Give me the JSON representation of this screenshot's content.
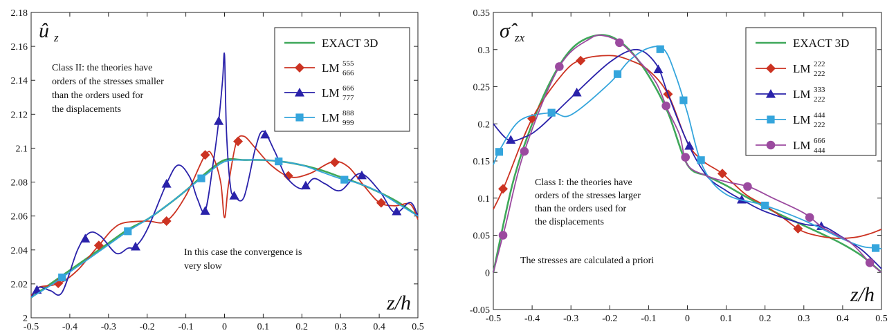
{
  "charts": [
    {
      "title_symbol": "û",
      "title_subscript": "z",
      "xlabel": "z/h",
      "notes": [
        "Class II: the theories have",
        "orders of the stresses smaller",
        "than the orders used for",
        "the displacements",
        "In this case the convergence is",
        "very slow"
      ]
    },
    {
      "title_symbol": "σ̂",
      "title_subscript": "zx",
      "xlabel": "z/h",
      "notes": [
        "Class I: the theories have",
        "orders of the stresses larger",
        "than the orders used for",
        "the displacements",
        "The stresses are calculated a priori"
      ]
    }
  ],
  "chart_data": [
    {
      "type": "line",
      "xlim": [
        -0.5,
        0.5
      ],
      "ylim": [
        2.0,
        2.18
      ],
      "xticks": [
        "-0.5",
        "-0.4",
        "-0.3",
        "-0.2",
        "-0.1",
        "0",
        "0.1",
        "0.2",
        "0.3",
        "0.4",
        "0.5"
      ],
      "yticks": [
        "2",
        "2.02",
        "2.04",
        "2.06",
        "2.08",
        "2.1",
        "2.12",
        "2.14",
        "2.16",
        "2.18"
      ],
      "legend_position": "top-right",
      "series": [
        {
          "name": "EXACT 3D",
          "base": "EXACT 3D",
          "sup": "",
          "sub": "",
          "color": "#3fa85a",
          "marker": "none",
          "x": [
            -0.5,
            -0.45,
            -0.4,
            -0.35,
            -0.3,
            -0.25,
            -0.2,
            -0.15,
            -0.1,
            -0.05,
            0,
            0.05,
            0.1,
            0.15,
            0.2,
            0.25,
            0.3,
            0.35,
            0.4,
            0.45,
            0.5
          ],
          "y": [
            2.012,
            2.02,
            2.028,
            2.036,
            2.044,
            2.052,
            2.058,
            2.066,
            2.075,
            2.085,
            2.093,
            2.093,
            2.093,
            2.092,
            2.09,
            2.087,
            2.083,
            2.079,
            2.074,
            2.068,
            2.06
          ],
          "marker_x": []
        },
        {
          "name": "LM555 666",
          "base": "LM",
          "sup": "555",
          "sub": "666",
          "color": "#cc3322",
          "marker": "diamond",
          "x": [
            -0.5,
            -0.48,
            -0.45,
            -0.42,
            -0.38,
            -0.35,
            -0.32,
            -0.29,
            -0.26,
            -0.2,
            -0.15,
            -0.1,
            -0.05,
            -0.03,
            -0.01,
            0,
            0.01,
            0.03,
            0.05,
            0.08,
            0.12,
            0.17,
            0.22,
            0.28,
            0.32,
            0.36,
            0.4,
            0.44,
            0.48,
            0.5
          ],
          "y": [
            2.013,
            2.018,
            2.019,
            2.021,
            2.028,
            2.036,
            2.044,
            2.052,
            2.056,
            2.057,
            2.057,
            2.072,
            2.096,
            2.095,
            2.08,
            2.059,
            2.078,
            2.103,
            2.107,
            2.1,
            2.09,
            2.083,
            2.085,
            2.092,
            2.089,
            2.078,
            2.068,
            2.066,
            2.067,
            2.058
          ],
          "marker_x": [
            -0.43,
            -0.325,
            -0.15,
            -0.05,
            0.035,
            0.165,
            0.285,
            0.405
          ]
        },
        {
          "name": "LM666 777",
          "base": "LM",
          "sup": "666",
          "sub": "777",
          "color": "#2a22aa",
          "marker": "triangle",
          "x": [
            -0.5,
            -0.48,
            -0.45,
            -0.42,
            -0.38,
            -0.35,
            -0.32,
            -0.28,
            -0.25,
            -0.23,
            -0.2,
            -0.15,
            -0.12,
            -0.09,
            -0.07,
            -0.05,
            -0.03,
            -0.015,
            -0.005,
            0,
            0.005,
            0.015,
            0.025,
            0.05,
            0.08,
            0.1,
            0.13,
            0.16,
            0.2,
            0.23,
            0.26,
            0.3,
            0.35,
            0.4,
            0.44,
            0.48,
            0.5
          ],
          "y": [
            2.012,
            2.018,
            2.016,
            2.015,
            2.04,
            2.05,
            2.048,
            2.038,
            2.041,
            2.042,
            2.052,
            2.079,
            2.09,
            2.083,
            2.07,
            2.063,
            2.09,
            2.116,
            2.14,
            2.155,
            2.11,
            2.078,
            2.072,
            2.071,
            2.1,
            2.11,
            2.098,
            2.083,
            2.076,
            2.082,
            2.079,
            2.075,
            2.085,
            2.075,
            2.062,
            2.068,
            2.06
          ],
          "marker_x": [
            -0.485,
            -0.36,
            -0.23,
            -0.15,
            -0.05,
            -0.015,
            0.025,
            0.105,
            0.21,
            0.355,
            0.445
          ]
        },
        {
          "name": "LM888 999",
          "base": "LM",
          "sup": "888",
          "sub": "999",
          "color": "#35a5dc",
          "marker": "square",
          "x": [
            -0.5,
            -0.45,
            -0.4,
            -0.35,
            -0.3,
            -0.25,
            -0.2,
            -0.15,
            -0.1,
            -0.05,
            0,
            0.05,
            0.1,
            0.15,
            0.2,
            0.25,
            0.3,
            0.35,
            0.4,
            0.45,
            0.5
          ],
          "y": [
            2.012,
            2.019,
            2.027,
            2.035,
            2.043,
            2.051,
            2.058,
            2.066,
            2.075,
            2.084,
            2.092,
            2.093,
            2.093,
            2.092,
            2.09,
            2.086,
            2.082,
            2.079,
            2.074,
            2.067,
            2.06
          ],
          "marker_x": [
            -0.42,
            -0.25,
            -0.06,
            0.14,
            0.31
          ]
        }
      ]
    },
    {
      "type": "line",
      "xlim": [
        -0.5,
        0.5
      ],
      "ylim": [
        -0.05,
        0.35
      ],
      "xticks": [
        "-0.5",
        "-0.4",
        "-0.3",
        "-0.2",
        "-0.1",
        "0",
        "0.1",
        "0.2",
        "0.3",
        "0.4",
        "0.5"
      ],
      "yticks": [
        "-0.05",
        "0",
        "0.05",
        "0.1",
        "0.15",
        "0.2",
        "0.25",
        "0.3",
        "0.35"
      ],
      "legend_position": "top-right",
      "series": [
        {
          "name": "EXACT 3D",
          "base": "EXACT 3D",
          "sup": "",
          "sub": "",
          "color": "#3fa85a",
          "marker": "none",
          "x": [
            -0.5,
            -0.45,
            -0.4,
            -0.35,
            -0.3,
            -0.25,
            -0.2,
            -0.15,
            -0.1,
            -0.05,
            0,
            0.05,
            0.1,
            0.15,
            0.2,
            0.25,
            0.3,
            0.35,
            0.4,
            0.45,
            0.5
          ],
          "y": [
            0.0,
            0.12,
            0.2,
            0.26,
            0.3,
            0.317,
            0.318,
            0.3,
            0.265,
            0.215,
            0.145,
            0.13,
            0.117,
            0.102,
            0.088,
            0.075,
            0.063,
            0.051,
            0.038,
            0.022,
            0.0
          ],
          "marker_x": []
        },
        {
          "name": "LM222 222",
          "base": "LM",
          "sup": "222",
          "sub": "222",
          "color": "#cc3322",
          "marker": "diamond",
          "x": [
            -0.5,
            -0.47,
            -0.4,
            -0.32,
            -0.27,
            -0.2,
            -0.15,
            -0.1,
            -0.05,
            0,
            0.04,
            0.09,
            0.15,
            0.2,
            0.25,
            0.29,
            0.33,
            0.38,
            0.43,
            0.47,
            0.5
          ],
          "y": [
            0.085,
            0.118,
            0.207,
            0.268,
            0.287,
            0.292,
            0.286,
            0.272,
            0.24,
            0.175,
            0.15,
            0.133,
            0.105,
            0.09,
            0.072,
            0.057,
            0.05,
            0.046,
            0.047,
            0.052,
            0.058
          ],
          "marker_x": [
            -0.475,
            -0.4,
            -0.275,
            -0.05,
            0.09,
            0.285
          ]
        },
        {
          "name": "LM333 222",
          "base": "LM",
          "sup": "333",
          "sub": "222",
          "color": "#2a22aa",
          "marker": "triangle",
          "x": [
            -0.5,
            -0.46,
            -0.42,
            -0.38,
            -0.3,
            -0.2,
            -0.13,
            -0.08,
            -0.05,
            0,
            0.05,
            0.1,
            0.15,
            0.2,
            0.3,
            0.35,
            0.4,
            0.45,
            0.5
          ],
          "y": [
            0.2,
            0.178,
            0.182,
            0.195,
            0.235,
            0.283,
            0.3,
            0.28,
            0.24,
            0.175,
            0.13,
            0.11,
            0.095,
            0.082,
            0.065,
            0.062,
            0.047,
            0.03,
            0.005
          ],
          "marker_x": [
            -0.455,
            -0.285,
            -0.075,
            0.005,
            0.14,
            0.345
          ]
        },
        {
          "name": "LM444 222",
          "base": "LM",
          "sup": "444",
          "sub": "222",
          "color": "#35a5dc",
          "marker": "square",
          "x": [
            -0.5,
            -0.48,
            -0.43,
            -0.35,
            -0.3,
            -0.2,
            -0.15,
            -0.1,
            -0.06,
            -0.03,
            0,
            0.04,
            0.1,
            0.2,
            0.3,
            0.4,
            0.45,
            0.48,
            0.5
          ],
          "y": [
            0.145,
            0.168,
            0.205,
            0.215,
            0.212,
            0.255,
            0.285,
            0.302,
            0.3,
            0.265,
            0.215,
            0.142,
            0.105,
            0.09,
            0.07,
            0.045,
            0.035,
            0.033,
            0.032
          ],
          "marker_x": [
            -0.485,
            -0.35,
            -0.18,
            -0.07,
            -0.01,
            0.035,
            0.2,
            0.485
          ]
        },
        {
          "name": "LM666 444",
          "base": "LM",
          "sup": "666",
          "sub": "444",
          "color": "#9b4a9f",
          "marker": "circle",
          "x": [
            -0.5,
            -0.47,
            -0.42,
            -0.33,
            -0.25,
            -0.21,
            -0.17,
            -0.12,
            -0.08,
            -0.05,
            -0.02,
            0,
            0.05,
            0.1,
            0.16,
            0.22,
            0.3,
            0.35,
            0.42,
            0.47,
            0.5
          ],
          "y": [
            0.0,
            0.06,
            0.163,
            0.277,
            0.315,
            0.318,
            0.308,
            0.282,
            0.255,
            0.218,
            0.185,
            0.145,
            0.13,
            0.122,
            0.115,
            0.1,
            0.08,
            0.06,
            0.04,
            0.013,
            0.0
          ],
          "marker_x": [
            -0.475,
            -0.42,
            -0.33,
            -0.175,
            -0.055,
            -0.005,
            0.155,
            0.315,
            0.47
          ]
        }
      ]
    }
  ]
}
